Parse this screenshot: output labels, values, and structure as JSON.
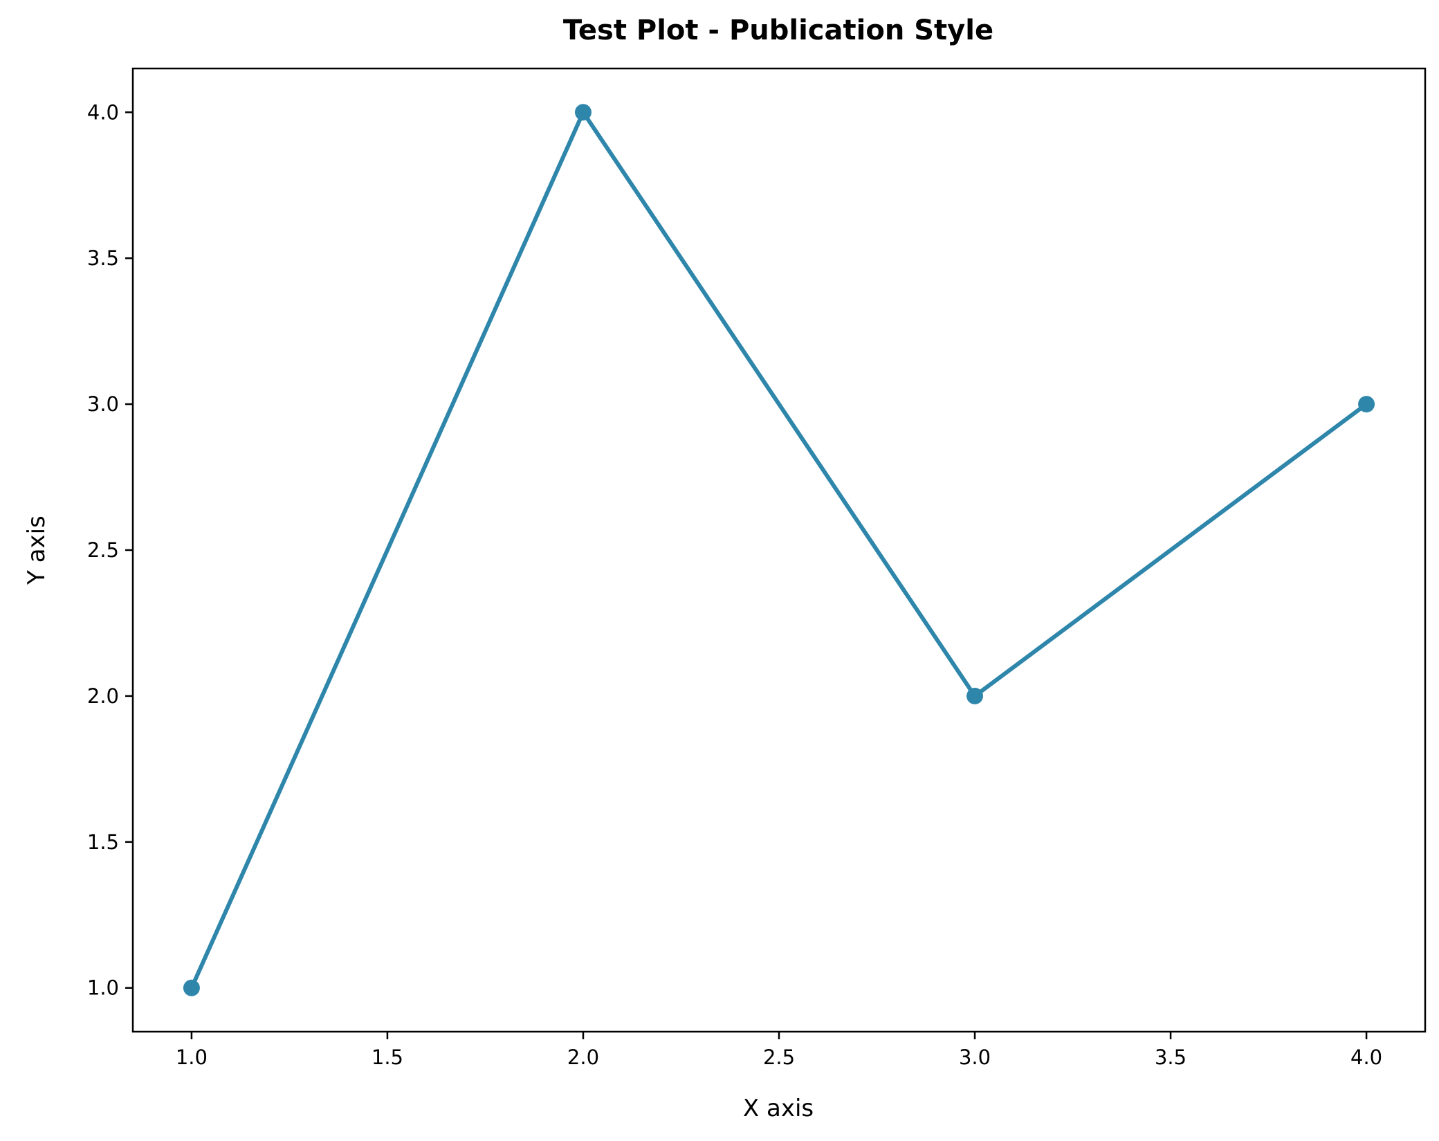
{
  "chart_data": {
    "type": "line",
    "title": "Test Plot - Publication Style",
    "xlabel": "X axis",
    "ylabel": "Y axis",
    "x": [
      1.0,
      2.0,
      3.0,
      4.0
    ],
    "series": [
      {
        "values": [
          1.0,
          4.0,
          2.0,
          3.0
        ],
        "color": "#2e86ab",
        "marker": "circle"
      }
    ],
    "xlim": [
      0.85,
      4.15
    ],
    "ylim": [
      0.85,
      4.15
    ],
    "xticks": [
      1.0,
      1.5,
      2.0,
      2.5,
      3.0,
      3.5,
      4.0
    ],
    "xtick_labels": [
      "1.0",
      "1.5",
      "2.0",
      "2.5",
      "3.0",
      "3.5",
      "4.0"
    ],
    "yticks": [
      1.0,
      1.5,
      2.0,
      2.5,
      3.0,
      3.5,
      4.0
    ],
    "ytick_labels": [
      "1.0",
      "1.5",
      "2.0",
      "2.5",
      "3.0",
      "3.5",
      "4.0"
    ],
    "grid": false,
    "legend": "none"
  }
}
